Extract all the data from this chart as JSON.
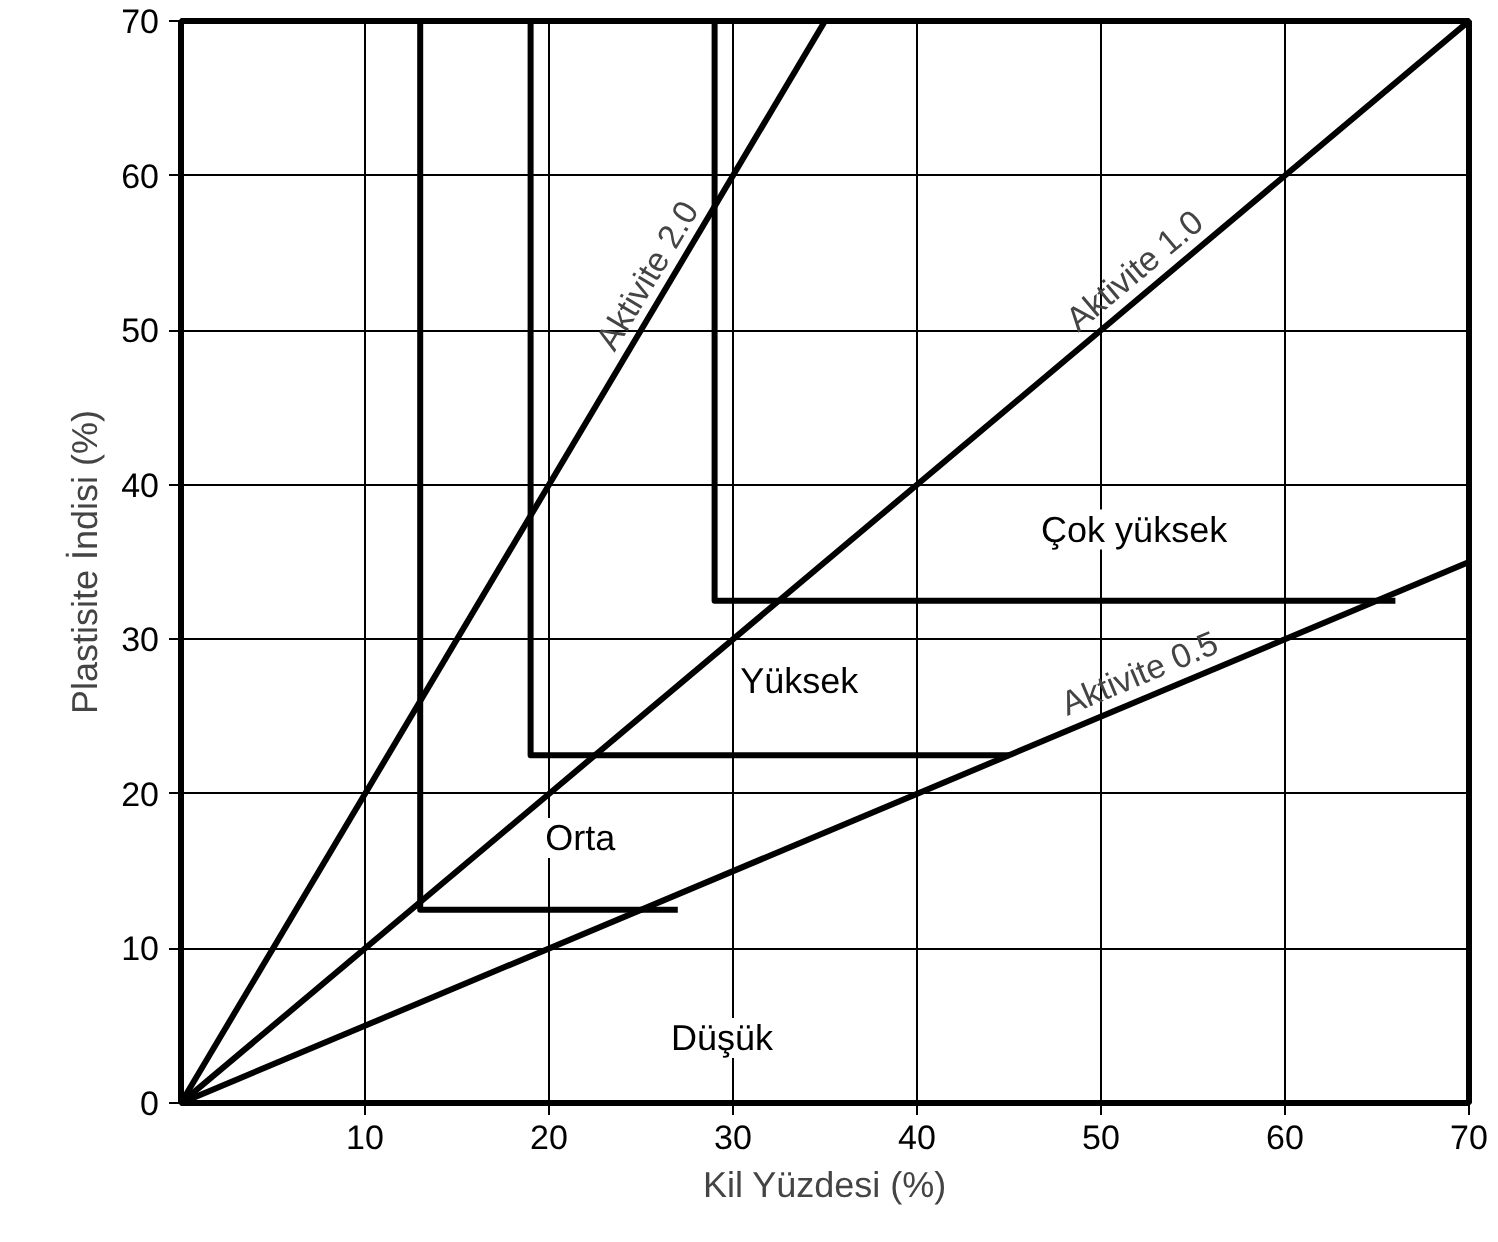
{
  "chart_data": {
    "type": "line",
    "xlabel": "Kil Yüzdesi (%)",
    "ylabel": "Plastisite İndisi (%)",
    "xlim": [
      0,
      70
    ],
    "ylim": [
      0,
      70
    ],
    "xticks": [
      10,
      20,
      30,
      40,
      50,
      60,
      70
    ],
    "yticks": [
      0,
      10,
      20,
      30,
      40,
      50,
      60,
      70
    ],
    "grid": true,
    "legend": false,
    "marker": "none",
    "line_style": "solid",
    "series": [
      {
        "name": "Aktivite 2.0",
        "color": "#000000",
        "x": [
          0,
          35
        ],
        "values": [
          0,
          70
        ]
      },
      {
        "name": "Aktivite 1.0",
        "color": "#000000",
        "x": [
          0,
          70
        ],
        "values": [
          0,
          70
        ]
      },
      {
        "name": "Aktivite 0.5",
        "color": "#000000",
        "x": [
          0,
          70
        ],
        "values": [
          0,
          35
        ]
      },
      {
        "color": "#000000",
        "x": [
          13,
          13,
          27
        ],
        "values": [
          70,
          12.5,
          12.5
        ]
      },
      {
        "color": "#000000",
        "x": [
          19,
          19,
          45
        ],
        "values": [
          70,
          22.5,
          22.5
        ]
      },
      {
        "color": "#000000",
        "x": [
          29,
          29,
          66
        ],
        "values": [
          70,
          32.5,
          32.5
        ]
      }
    ],
    "annotations": [
      "Düşük",
      "Orta",
      "Yüksek",
      "Çok yüksek"
    ]
  }
}
